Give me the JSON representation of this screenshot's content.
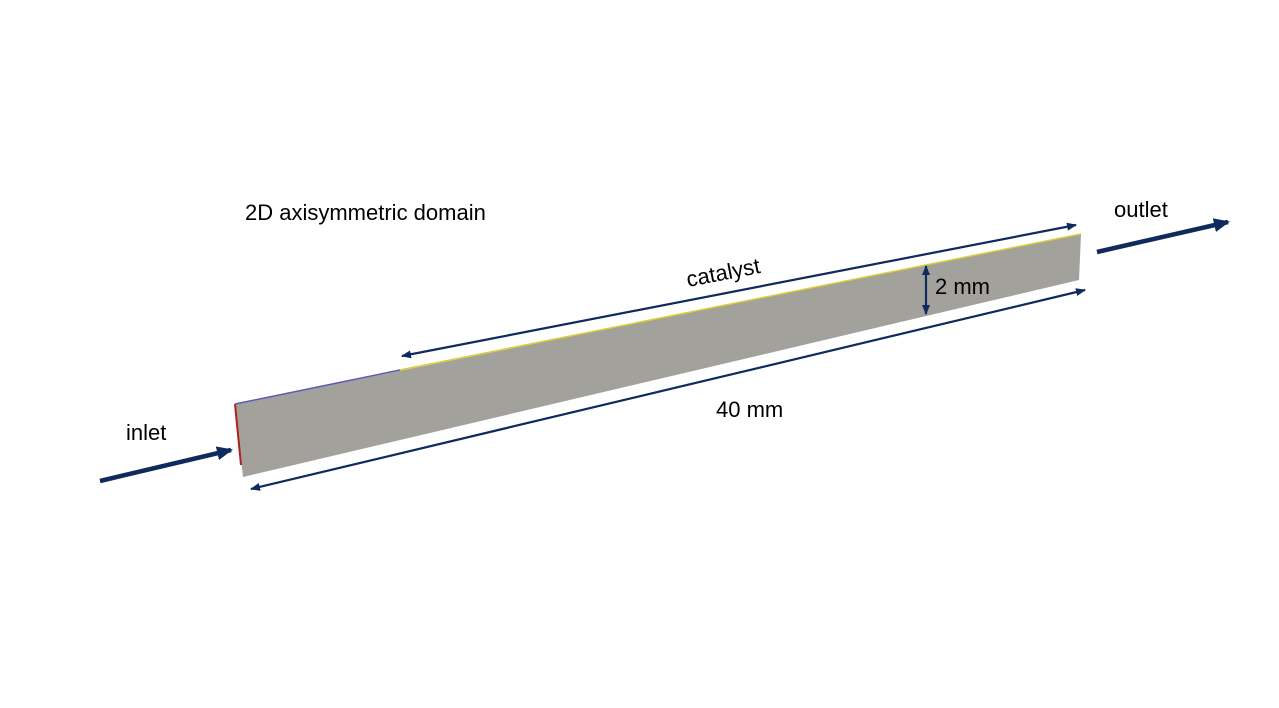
{
  "diagram": {
    "title": "2D axisymmetric domain",
    "labels": {
      "inlet": "inlet",
      "outlet": "outlet",
      "catalyst": "catalyst",
      "width": "2 mm",
      "length": "40 mm"
    }
  },
  "colors": {
    "domain_fill": "#a2a19c",
    "arrow": "#0f2a5c",
    "catalyst_edge": "#d8cc3a",
    "inert_edge": "#5a5ab8",
    "inlet_edge": "#b02020"
  }
}
